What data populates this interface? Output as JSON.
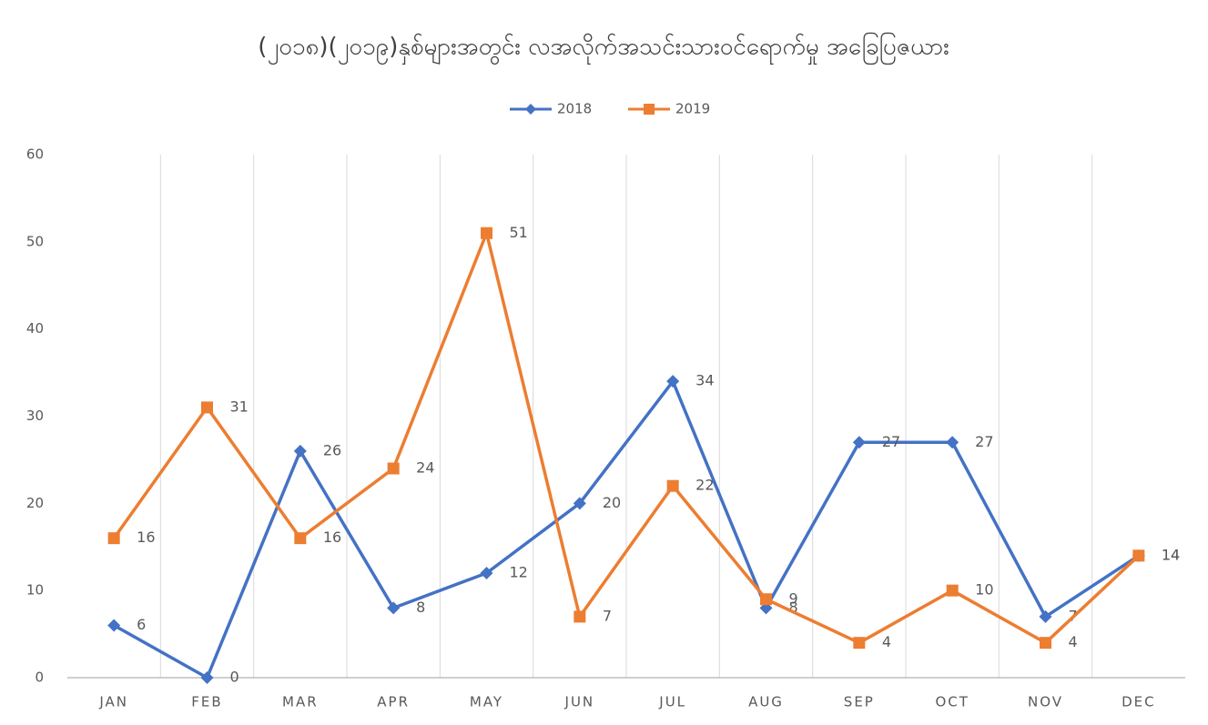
{
  "chart_data": {
    "type": "line",
    "title": "(၂၀၁၈)(၂၀၁၉)နှစ်များအတွင်း လအလိုက်အသင်းသားဝင်ရောက်မှု အခြေပြဇယား",
    "categories": [
      "JAN",
      "FEB",
      "MAR",
      "APR",
      "MAY",
      "JUN",
      "JUL",
      "AUG",
      "SEP",
      "OCT",
      "NOV",
      "DEC"
    ],
    "series": [
      {
        "name": "2018",
        "color": "#4472c4",
        "values": [
          6,
          0,
          26,
          8,
          12,
          20,
          34,
          8,
          27,
          27,
          7,
          14
        ]
      },
      {
        "name": "2019",
        "color": "#ed7d31",
        "values": [
          16,
          31,
          16,
          24,
          51,
          7,
          22,
          9,
          4,
          10,
          4,
          14
        ]
      }
    ],
    "ylim": [
      0,
      60
    ],
    "yticks": [
      0,
      10,
      20,
      30,
      40,
      50,
      60
    ],
    "grid": "x",
    "legend": "top",
    "data_labels": true
  }
}
